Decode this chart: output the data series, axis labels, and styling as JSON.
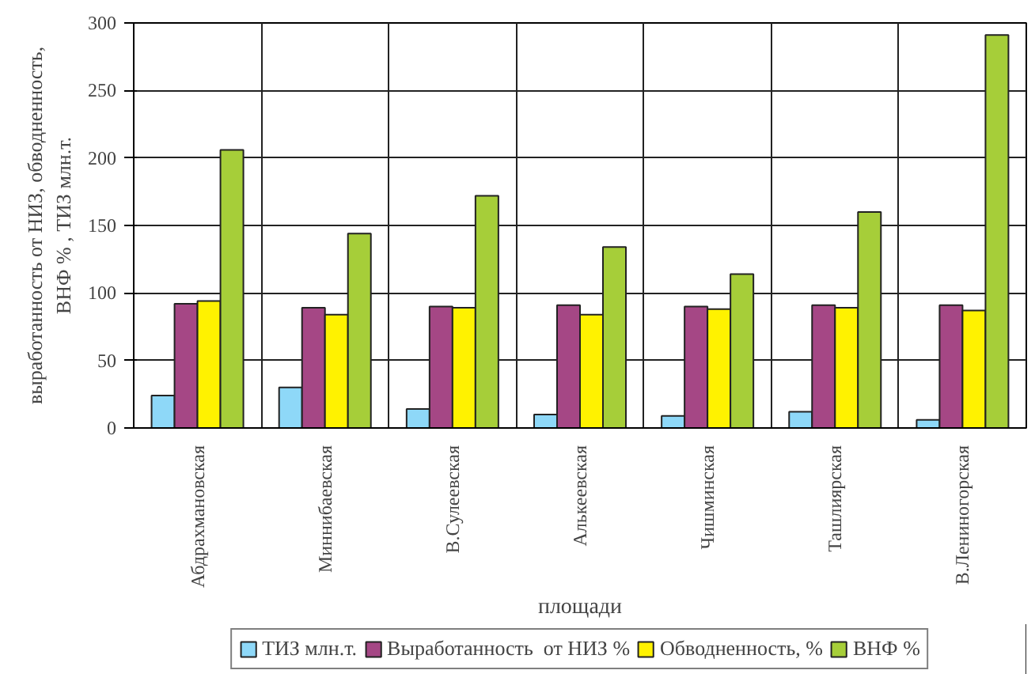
{
  "chart_data": {
    "type": "bar",
    "xlabel": "площади",
    "ylabel": "выработанность от НИЗ, обводненность,\nВНФ % , ТИЗ млн.т.",
    "categories": [
      "Абдрахмановская",
      "Миннибаевская",
      "В.Сулеевская",
      "Алькеевская",
      "Чишминская",
      "Ташлиярская",
      "В.Лениногорская"
    ],
    "series": [
      {
        "name": "ТИЗ млн.т.",
        "color": "#8ed8f8",
        "values": [
          24,
          30,
          14,
          10,
          9,
          12,
          6
        ]
      },
      {
        "name": "Выработанность  от НИЗ %",
        "color": "#a54785",
        "values": [
          92,
          89,
          90,
          91,
          90,
          91,
          91
        ]
      },
      {
        "name": "Обводненность, %",
        "color": "#fff200",
        "values": [
          94,
          84,
          89,
          84,
          88,
          89,
          87
        ]
      },
      {
        "name": "ВНФ %",
        "color": "#a6ce39",
        "values": [
          206,
          144,
          172,
          134,
          114,
          160,
          291
        ]
      }
    ],
    "ylim": [
      0,
      300
    ],
    "yticks": [
      0,
      50,
      100,
      150,
      200,
      250,
      300
    ],
    "grid": true,
    "legend": "bottom"
  }
}
